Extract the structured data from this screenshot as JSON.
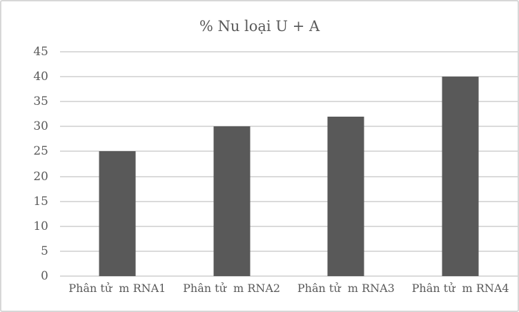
{
  "chart_data": {
    "type": "bar",
    "title": "% Nu loại U + A",
    "categories": [
      "Phân tử  m RNA1",
      "Phân tử  m RNA2",
      "Phân tử  m RNA3",
      "Phân tử  m RNA4"
    ],
    "values": [
      25,
      30,
      32,
      40
    ],
    "xlabel": "",
    "ylabel": "",
    "ylim": [
      0,
      45
    ],
    "ytick_step": 5,
    "grid": true,
    "legend": "none",
    "colors": {
      "bar": "#595959",
      "gridline": "#dadada",
      "text": "#595959",
      "border": "#d7d7d7",
      "background": "#ffffff"
    }
  }
}
